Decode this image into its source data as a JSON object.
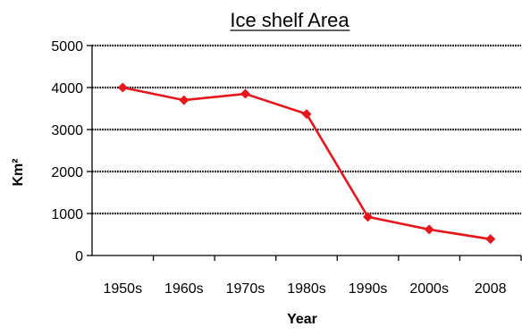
{
  "chart_data": {
    "type": "line",
    "title": "Ice shelf Area",
    "xlabel": "Year",
    "ylabel": "Km²",
    "categories": [
      "1950s",
      "1960s",
      "1970s",
      "1980s",
      "1990s",
      "2000s",
      "2008"
    ],
    "series": [
      {
        "values": [
          4000,
          3700,
          3850,
          3370,
          920,
          620,
          390
        ],
        "color": "#e8161b"
      }
    ],
    "ylim": [
      0,
      5000
    ],
    "yticks": [
      0,
      1000,
      2000,
      3000,
      4000,
      5000
    ],
    "ytick_labels": [
      "0",
      "1000",
      "2000",
      "3000",
      "4000",
      "5000"
    ],
    "grid": true,
    "grid_style": "dotted",
    "marker": "diamond"
  }
}
